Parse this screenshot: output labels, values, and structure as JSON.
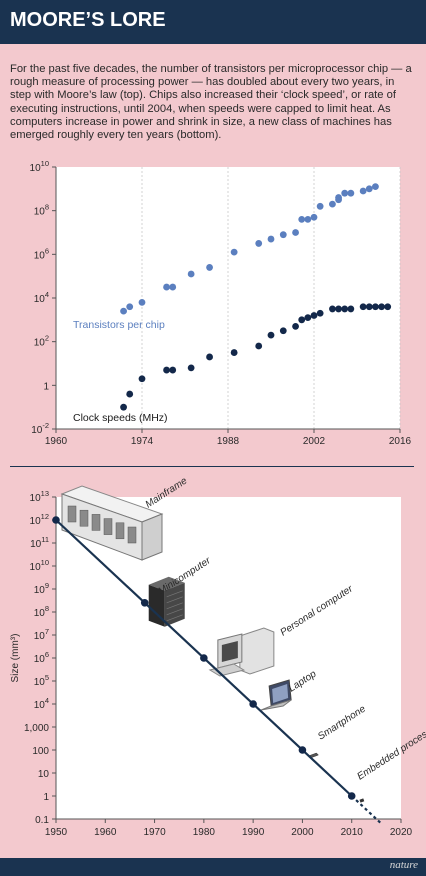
{
  "header": {
    "title": "MOORE’S LORE"
  },
  "intro": "For the past five decades, the number of transistors per microprocessor chip — a rough measure of processing power — has doubled about every two years, in step with Moore’s law (top). Chips also increased their ‘clock speed’, or rate of executing instructions, until 2004, when speeds were capped to limit heat. As computers increase in power and shrink in size, a new class of machines has emerged roughly every ten years (bottom).",
  "footer": {
    "credit": "nature"
  },
  "colors": {
    "transistors": "#5b7fbf",
    "clock": "#13284a",
    "header": "#1a3350",
    "background": "#f3c9ce"
  },
  "chart_data": [
    {
      "type": "scatter",
      "title": "",
      "xlabel": "",
      "ylabel": "",
      "y_scale": "log10",
      "xlim": [
        1960,
        2016
      ],
      "ylim_exp": [
        -2,
        10
      ],
      "x_ticks": [
        "1960",
        "1974",
        "1988",
        "2002",
        "2016"
      ],
      "y_tick_labels": [
        {
          "base": "10",
          "exp": "10"
        },
        {
          "base": "10",
          "exp": "8"
        },
        {
          "base": "10",
          "exp": "6"
        },
        {
          "base": "10",
          "exp": "4"
        },
        {
          "base": "10",
          "exp": "2"
        },
        {
          "base": "1",
          "exp": ""
        },
        {
          "base": "10",
          "exp": "-2"
        }
      ],
      "series": [
        {
          "name": "Transistors per chip",
          "points": [
            [
              1971,
              3.4
            ],
            [
              1972,
              3.6
            ],
            [
              1974,
              3.8
            ],
            [
              1978,
              4.5
            ],
            [
              1979,
              4.5
            ],
            [
              1982,
              5.1
            ],
            [
              1985,
              5.4
            ],
            [
              1989,
              6.1
            ],
            [
              1993,
              6.5
            ],
            [
              1995,
              6.7
            ],
            [
              1997,
              6.9
            ],
            [
              1999,
              7.0
            ],
            [
              2000,
              7.6
            ],
            [
              2001,
              7.6
            ],
            [
              2002,
              7.7
            ],
            [
              2003,
              8.2
            ],
            [
              2005,
              8.3
            ],
            [
              2006,
              8.5
            ],
            [
              2006,
              8.6
            ],
            [
              2007,
              8.8
            ],
            [
              2008,
              8.8
            ],
            [
              2010,
              8.9
            ],
            [
              2011,
              9.0
            ],
            [
              2012,
              9.1
            ]
          ]
        },
        {
          "name": "Clock speeds (MHz)",
          "points": [
            [
              1971,
              -1.0
            ],
            [
              1972,
              -0.4
            ],
            [
              1974,
              0.3
            ],
            [
              1978,
              0.7
            ],
            [
              1979,
              0.7
            ],
            [
              1982,
              0.8
            ],
            [
              1985,
              1.3
            ],
            [
              1989,
              1.5
            ],
            [
              1993,
              1.8
            ],
            [
              1995,
              2.3
            ],
            [
              1997,
              2.5
            ],
            [
              1999,
              2.7
            ],
            [
              2000,
              3.0
            ],
            [
              2001,
              3.1
            ],
            [
              2002,
              3.2
            ],
            [
              2003,
              3.3
            ],
            [
              2005,
              3.5
            ],
            [
              2006,
              3.5
            ],
            [
              2007,
              3.5
            ],
            [
              2008,
              3.5
            ],
            [
              2010,
              3.6
            ],
            [
              2011,
              3.6
            ],
            [
              2012,
              3.6
            ],
            [
              2013,
              3.6
            ],
            [
              2014,
              3.6
            ]
          ]
        }
      ]
    },
    {
      "type": "line",
      "title": "",
      "xlabel": "",
      "ylabel": "Size (mm³)",
      "y_scale": "log10",
      "xlim": [
        1950,
        2020
      ],
      "ylim_exp": [
        -1,
        13
      ],
      "x_ticks": [
        "1950",
        "1960",
        "1970",
        "1980",
        "1990",
        "2000",
        "2010",
        "2020"
      ],
      "y_tick_labels": [
        {
          "base": "10",
          "exp": "13"
        },
        {
          "base": "10",
          "exp": "12"
        },
        {
          "base": "10",
          "exp": "11"
        },
        {
          "base": "10",
          "exp": "10"
        },
        {
          "base": "10",
          "exp": "9"
        },
        {
          "base": "10",
          "exp": "8"
        },
        {
          "base": "10",
          "exp": "7"
        },
        {
          "base": "10",
          "exp": "6"
        },
        {
          "base": "10",
          "exp": "5"
        },
        {
          "base": "10",
          "exp": "4"
        },
        {
          "base": "1,000",
          "exp": ""
        },
        {
          "base": "100",
          "exp": ""
        },
        {
          "base": "10",
          "exp": ""
        },
        {
          "base": "1",
          "exp": ""
        },
        {
          "base": "0.1",
          "exp": ""
        }
      ],
      "series": [
        {
          "name": "",
          "points": [
            {
              "x": 1950,
              "y_exp": 12,
              "label": "Mainframe",
              "icon": "mainframe-icon"
            },
            {
              "x": 1968,
              "y_exp": 8.4,
              "label": "Minicomputer",
              "icon": "minicomputer-icon"
            },
            {
              "x": 1980,
              "y_exp": 6,
              "label": "Personal computer",
              "icon": "personal-computer-icon"
            },
            {
              "x": 1990,
              "y_exp": 4,
              "label": "Laptop",
              "icon": "laptop-icon"
            },
            {
              "x": 2000,
              "y_exp": 2,
              "label": "Smartphone",
              "icon": "smartphone-icon"
            },
            {
              "x": 2010,
              "y_exp": 0,
              "label": "Embedded processors",
              "icon": "embedded-processor-icon"
            }
          ],
          "trend_end": {
            "x": 2016,
            "y_exp": -1.2
          }
        }
      ]
    }
  ]
}
